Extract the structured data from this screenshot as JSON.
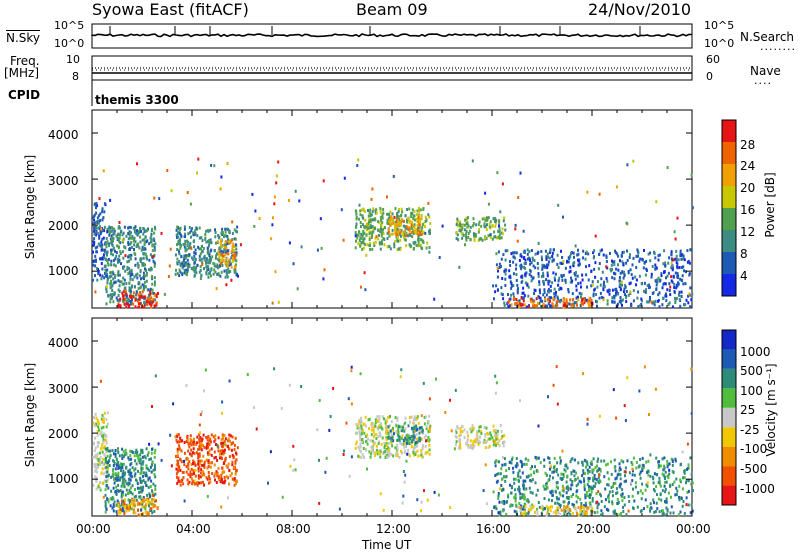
{
  "header": {
    "title": "Syowa East (fitACF)",
    "beam": "Beam 09",
    "date": "24/Nov/2010"
  },
  "status_panels": {
    "nsky_label": "N.Sky",
    "nsky_hi": "10^5",
    "nsky_lo": "10^0",
    "nsearch_label": "N.Search",
    "nsearch_hi": "10^5",
    "nsearch_lo": "10^0",
    "freq_label": "Freq.",
    "freq_unit": "[MHz]",
    "freq_hi": "10",
    "freq_lo": "8",
    "nave_label": "Nave",
    "nave_hi": "60",
    "nave_lo": "0",
    "cpid_label": "CPID",
    "cpid_value": "themis 3300"
  },
  "chart_data": [
    {
      "type": "heatmap",
      "name": "power",
      "ylabel": "Slant Range [km]",
      "yticks": [
        "1000",
        "2000",
        "3000",
        "4000"
      ],
      "ylim": [
        200,
        4500
      ],
      "colorbar_label": "Power [dB]",
      "colorbar_ticks": [
        "4",
        "8",
        "12",
        "16",
        "20",
        "24",
        "28"
      ],
      "colors": [
        "#1428e6",
        "#1e5ab4",
        "#3c8c82",
        "#50a050",
        "#c8c800",
        "#f0a000",
        "#f06400",
        "#e61414"
      ],
      "echo_regions": [
        {
          "t0": 0.0,
          "t1": 0.5,
          "r0": 800,
          "r1": 2500,
          "level": 1
        },
        {
          "t0": 0.5,
          "t1": 2.5,
          "r0": 300,
          "r1": 2000,
          "level": 2
        },
        {
          "t0": 1.0,
          "t1": 2.6,
          "r0": 250,
          "r1": 600,
          "level": 7
        },
        {
          "t0": 3.3,
          "t1": 5.8,
          "r0": 900,
          "r1": 2000,
          "level": 2
        },
        {
          "t0": 5.0,
          "t1": 5.7,
          "r0": 1100,
          "r1": 1700,
          "level": 5
        },
        {
          "t0": 10.5,
          "t1": 13.5,
          "r0": 1500,
          "r1": 2400,
          "level": 3
        },
        {
          "t0": 11.8,
          "t1": 13.2,
          "r0": 1800,
          "r1": 2200,
          "level": 5
        },
        {
          "t0": 14.5,
          "t1": 16.5,
          "r0": 1700,
          "r1": 2200,
          "level": 3
        },
        {
          "t0": 16.0,
          "t1": 24.0,
          "r0": 250,
          "r1": 1500,
          "level": 1
        },
        {
          "t0": 16.5,
          "t1": 20.0,
          "r0": 250,
          "r1": 450,
          "level": 6
        }
      ]
    },
    {
      "type": "heatmap",
      "name": "velocity",
      "ylabel": "Slant Range [km]",
      "yticks": [
        "1000",
        "2000",
        "3000",
        "4000"
      ],
      "ylim": [
        200,
        4500
      ],
      "colorbar_label": "Velocity [m s⁻¹]",
      "colorbar_ticks": [
        "1000",
        "500",
        "100",
        "25",
        "-25",
        "-100",
        "-500",
        "-1000"
      ],
      "colors": [
        "#1428c8",
        "#1e5ab4",
        "#2d8c78",
        "#50be3c",
        "#c8c8c8",
        "#f0c800",
        "#f08c00",
        "#f05000",
        "#e61414"
      ],
      "echo_regions": [
        {
          "t0": 0.0,
          "t1": 0.6,
          "r0": 800,
          "r1": 2500,
          "level": 4
        },
        {
          "t0": 0.5,
          "t1": 2.5,
          "r0": 300,
          "r1": 1700,
          "level": 2
        },
        {
          "t0": 1.0,
          "t1": 2.6,
          "r0": 250,
          "r1": 600,
          "level": 6
        },
        {
          "t0": 3.3,
          "t1": 5.8,
          "r0": 900,
          "r1": 2000,
          "level": 7
        },
        {
          "t0": 10.5,
          "t1": 13.5,
          "r0": 1500,
          "r1": 2400,
          "level": 4
        },
        {
          "t0": 11.8,
          "t1": 13.2,
          "r0": 1800,
          "r1": 2200,
          "level": 2
        },
        {
          "t0": 14.5,
          "t1": 16.5,
          "r0": 1700,
          "r1": 2200,
          "level": 4
        },
        {
          "t0": 16.0,
          "t1": 24.0,
          "r0": 250,
          "r1": 1500,
          "level": 2
        },
        {
          "t0": 17.0,
          "t1": 20.0,
          "r0": 250,
          "r1": 450,
          "level": 5
        }
      ]
    }
  ],
  "time_axis": {
    "ticks": [
      "00:00",
      "04:00",
      "08:00",
      "12:00",
      "16:00",
      "20:00",
      "00:00"
    ],
    "label": "Time UT"
  }
}
